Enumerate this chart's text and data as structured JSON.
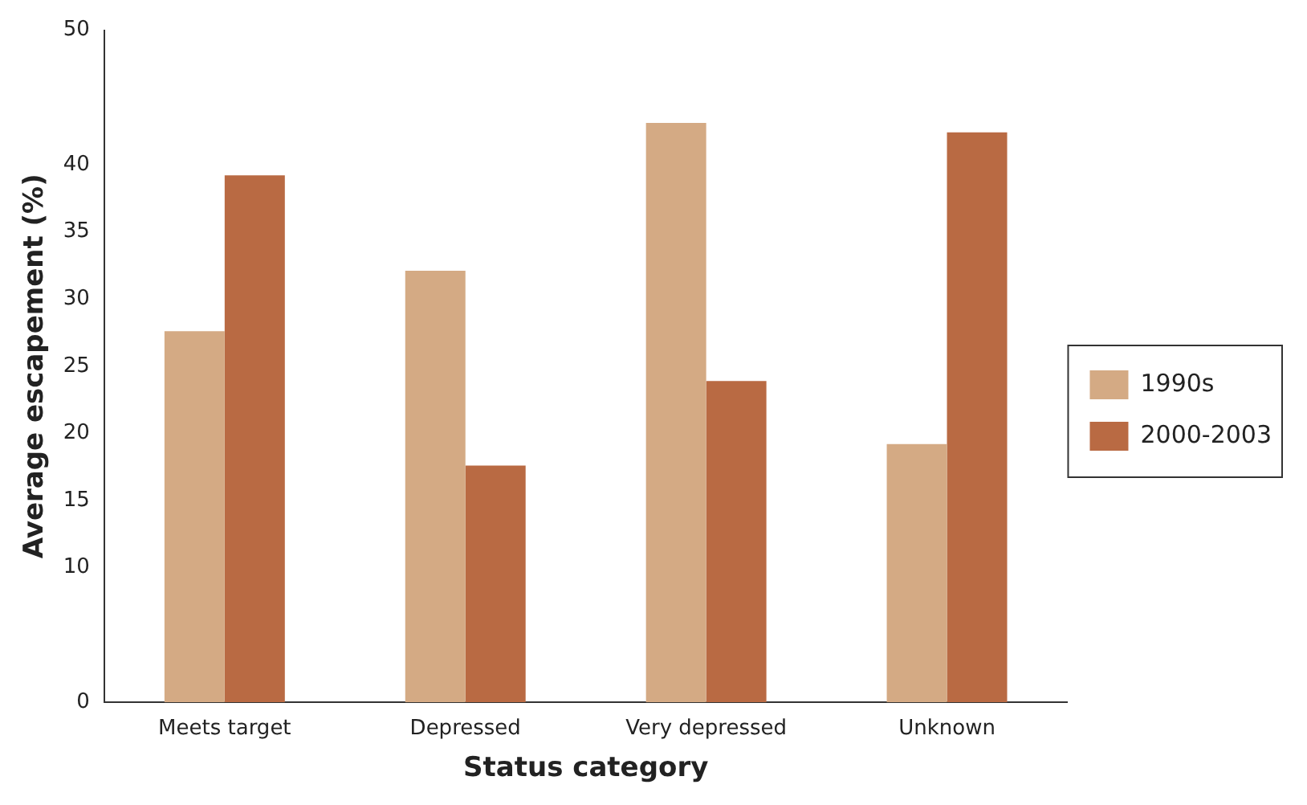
{
  "chart_data": {
    "type": "bar",
    "xlabel": "Status category",
    "ylabel": "Average escapement (%)",
    "categories": [
      "Meets target",
      "Depressed",
      "Very depressed",
      "Unknown"
    ],
    "series": [
      {
        "name": "1990s",
        "color": "#d4aa84",
        "values": [
          27.6,
          32.1,
          43.1,
          19.2
        ]
      },
      {
        "name": "2000-2003",
        "color": "#b96a43",
        "values": [
          39.2,
          17.6,
          23.9,
          42.4
        ]
      }
    ],
    "ylim": [
      0,
      50
    ],
    "yticks": [
      0,
      10,
      15,
      20,
      25,
      30,
      35,
      40,
      50
    ],
    "grid": false,
    "legend": "right"
  }
}
